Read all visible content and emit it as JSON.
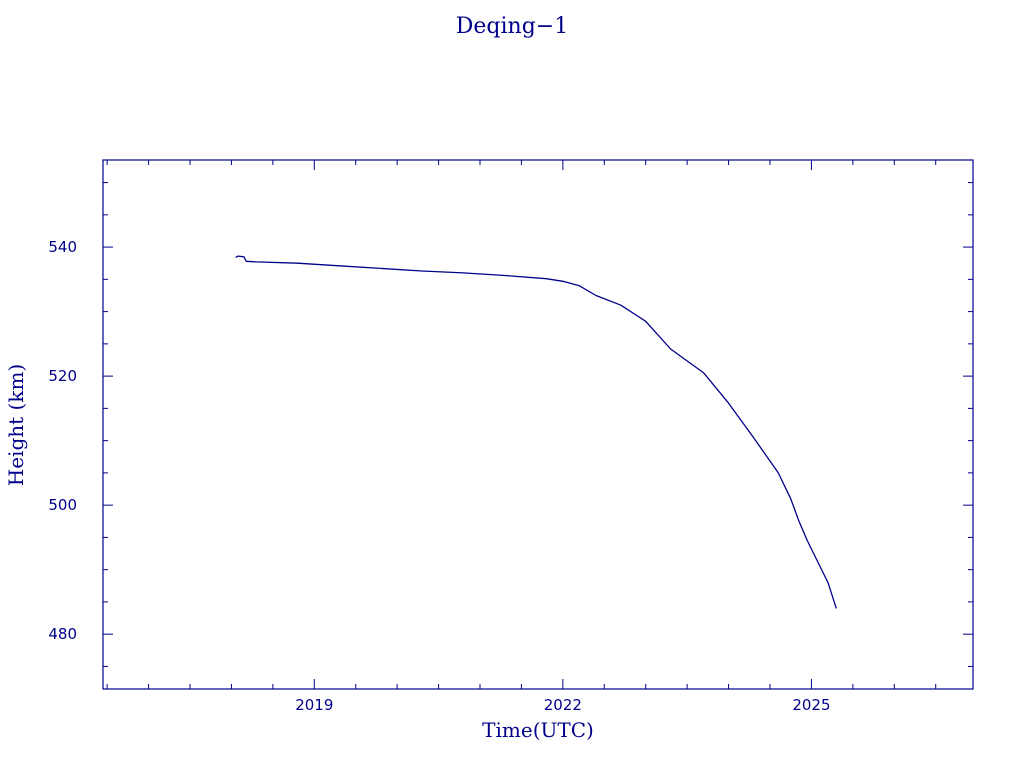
{
  "chart_data": {
    "type": "line",
    "title": "Deqing−1",
    "xlabel": "Time(UTC)",
    "ylabel": "Height (km)",
    "xlim": [
      2016.45,
      2026.95
    ],
    "ylim": [
      471.5,
      553.5
    ],
    "xticks": [
      {
        "value": 2019,
        "label": "2019"
      },
      {
        "value": 2022,
        "label": "2022"
      },
      {
        "value": 2025,
        "label": "2025"
      }
    ],
    "yticks": [
      {
        "value": 480,
        "label": "480"
      },
      {
        "value": 500,
        "label": "500"
      },
      {
        "value": 520,
        "label": "520"
      },
      {
        "value": 540,
        "label": "540"
      }
    ],
    "grid": false,
    "series": [
      {
        "color": "#00008b",
        "x": [
          2018.05,
          2018.08,
          2018.15,
          2018.18,
          2018.3,
          2018.8,
          2019.3,
          2019.8,
          2020.3,
          2020.8,
          2021.3,
          2021.8,
          2022.0,
          2022.2,
          2022.4,
          2022.7,
          2023.0,
          2023.3,
          2023.7,
          2024.0,
          2024.3,
          2024.6,
          2024.75,
          2024.85,
          2024.95,
          2025.2,
          2025.3
        ],
        "y": [
          538.4,
          538.6,
          538.5,
          537.8,
          537.7,
          537.5,
          537.1,
          536.7,
          536.3,
          536.0,
          535.6,
          535.1,
          534.7,
          534.0,
          532.5,
          531.0,
          528.5,
          524.2,
          520.5,
          515.8,
          510.5,
          505.0,
          501.0,
          497.5,
          494.5,
          488.0,
          484.0
        ]
      }
    ]
  }
}
